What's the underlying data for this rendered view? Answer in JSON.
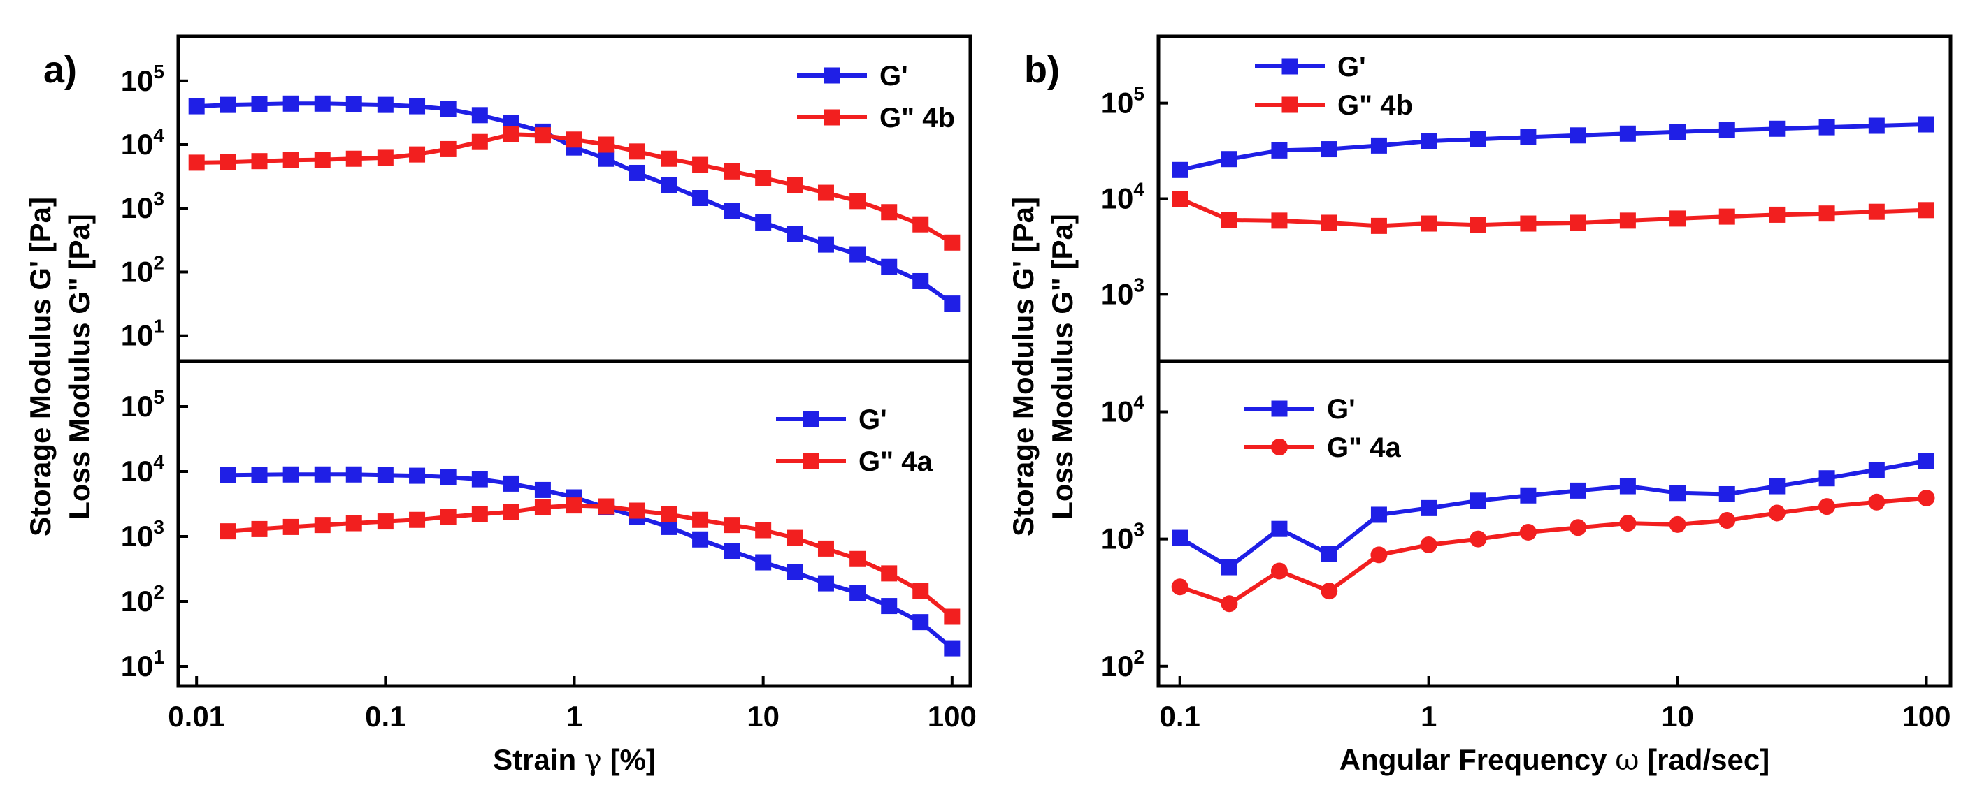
{
  "chart_data": [
    {
      "id": "a_top",
      "type": "line",
      "panel": "a)",
      "xscale": "log",
      "yscale": "log",
      "xlim": [
        0.008,
        125
      ],
      "ylim": [
        4,
        500000
      ],
      "yticks": [
        10,
        100,
        1000,
        10000,
        100000
      ],
      "ytick_exponents": [
        "1",
        "2",
        "3",
        "4",
        "5"
      ],
      "legend_location": "top-right",
      "legend_suffix": "4b",
      "series": [
        {
          "name": "G'",
          "color": "#1f1fe6",
          "marker": "square",
          "x": [
            0.01,
            0.0147,
            0.0215,
            0.0316,
            0.0464,
            0.0681,
            0.1,
            0.147,
            0.215,
            0.316,
            0.464,
            0.681,
            1,
            1.47,
            2.15,
            3.16,
            4.64,
            6.81,
            10,
            14.7,
            21.5,
            31.6,
            46.4,
            68.1,
            100
          ],
          "y": [
            40000,
            42000,
            43000,
            44000,
            44000,
            43000,
            42000,
            40000,
            36000,
            29000,
            22000,
            16000,
            9000,
            6000,
            3600,
            2300,
            1450,
            900,
            600,
            400,
            270,
            190,
            120,
            72,
            32
          ]
        },
        {
          "name": "G\"",
          "color": "#f21f1f",
          "marker": "square",
          "x": [
            0.01,
            0.0147,
            0.0215,
            0.0316,
            0.0464,
            0.0681,
            0.1,
            0.147,
            0.215,
            0.316,
            0.464,
            0.681,
            1,
            1.47,
            2.15,
            3.16,
            4.64,
            6.81,
            10,
            14.7,
            21.5,
            31.6,
            46.4,
            68.1,
            100
          ],
          "y": [
            5200,
            5300,
            5500,
            5700,
            5800,
            6000,
            6200,
            7000,
            8500,
            11000,
            14500,
            14000,
            12000,
            10000,
            7800,
            6000,
            4800,
            3800,
            3000,
            2300,
            1750,
            1300,
            870,
            560,
            290
          ]
        }
      ]
    },
    {
      "id": "a_bottom",
      "type": "line",
      "panel": "a)",
      "xscale": "log",
      "yscale": "log",
      "xlim": [
        0.008,
        125
      ],
      "ylim": [
        5,
        500000
      ],
      "yticks": [
        10,
        100,
        1000,
        10000,
        100000
      ],
      "ytick_exponents": [
        "1",
        "2",
        "3",
        "4",
        "5"
      ],
      "xticks": [
        "0.01",
        "0.1",
        "1",
        "10",
        "100"
      ],
      "xtick_values": [
        0.01,
        0.1,
        1,
        10,
        100
      ],
      "xlabel_prefix": "Strain",
      "xlabel_symbol": "γ",
      "xlabel_unit": "[%]",
      "legend_location": "top-right",
      "legend_suffix": "4a",
      "series": [
        {
          "name": "G'",
          "color": "#1f1fe6",
          "marker": "square",
          "x": [
            0.0147,
            0.0215,
            0.0316,
            0.0464,
            0.0681,
            0.1,
            0.147,
            0.215,
            0.316,
            0.464,
            0.681,
            1,
            1.47,
            2.15,
            3.16,
            4.64,
            6.81,
            10,
            14.7,
            21.5,
            31.6,
            46.4,
            68.1,
            100
          ],
          "y": [
            8800,
            8900,
            9000,
            9000,
            9000,
            8800,
            8600,
            8200,
            7600,
            6500,
            5200,
            4000,
            2800,
            2000,
            1400,
            900,
            600,
            400,
            280,
            190,
            135,
            85,
            48,
            19
          ]
        },
        {
          "name": "G\"",
          "color": "#f21f1f",
          "marker": "square",
          "x": [
            0.0147,
            0.0215,
            0.0316,
            0.0464,
            0.0681,
            0.1,
            0.147,
            0.215,
            0.316,
            0.464,
            0.681,
            1,
            1.47,
            2.15,
            3.16,
            4.64,
            6.81,
            10,
            14.7,
            21.5,
            31.6,
            46.4,
            68.1,
            100
          ],
          "y": [
            1200,
            1300,
            1400,
            1500,
            1600,
            1700,
            1800,
            2000,
            2200,
            2400,
            2800,
            3000,
            2900,
            2500,
            2200,
            1800,
            1500,
            1250,
            950,
            650,
            450,
            270,
            145,
            58
          ]
        }
      ]
    },
    {
      "id": "b_top",
      "type": "line",
      "panel": "b)",
      "xscale": "log",
      "yscale": "log",
      "xlim": [
        0.082,
        125
      ],
      "ylim": [
        200,
        500000
      ],
      "yticks": [
        1000,
        10000,
        100000
      ],
      "ytick_exponents": [
        "3",
        "4",
        "5"
      ],
      "legend_location": "top-left",
      "legend_suffix": "4b",
      "series": [
        {
          "name": "G'",
          "color": "#1f1fe6",
          "marker": "square",
          "x": [
            0.1,
            0.158,
            0.251,
            0.398,
            0.631,
            1,
            1.58,
            2.51,
            3.98,
            6.31,
            10,
            15.8,
            25.1,
            39.8,
            63.1,
            100
          ],
          "y": [
            20000,
            26000,
            32000,
            33000,
            36000,
            40000,
            42000,
            44000,
            46000,
            48000,
            50000,
            52000,
            54000,
            56000,
            58000,
            60000
          ]
        },
        {
          "name": "G\"",
          "color": "#f21f1f",
          "marker": "square",
          "x": [
            0.1,
            0.158,
            0.251,
            0.398,
            0.631,
            1,
            1.58,
            2.51,
            3.98,
            6.31,
            10,
            15.8,
            25.1,
            39.8,
            63.1,
            100
          ],
          "y": [
            10000,
            6000,
            5900,
            5600,
            5200,
            5500,
            5300,
            5500,
            5600,
            5900,
            6200,
            6500,
            6800,
            7000,
            7300,
            7600
          ]
        }
      ]
    },
    {
      "id": "b_bottom",
      "type": "line",
      "panel": "b)",
      "xscale": "log",
      "yscale": "log",
      "xlim": [
        0.082,
        125
      ],
      "ylim": [
        70,
        25000
      ],
      "yticks": [
        100,
        1000,
        10000
      ],
      "ytick_exponents": [
        "2",
        "3",
        "4"
      ],
      "xticks": [
        "0.1",
        "1",
        "10",
        "100"
      ],
      "xtick_values": [
        0.1,
        1,
        10,
        100
      ],
      "xlabel_prefix": "Angular Frequency",
      "xlabel_symbol": "ω",
      "xlabel_unit": "[rad/sec]",
      "legend_location": "top-left",
      "legend_suffix": "4a",
      "series": [
        {
          "name": "G'",
          "color": "#1f1fe6",
          "marker": "square",
          "x": [
            0.1,
            0.158,
            0.251,
            0.398,
            0.631,
            1,
            1.58,
            2.51,
            3.98,
            6.31,
            10,
            15.8,
            25.1,
            39.8,
            63.1,
            100
          ],
          "y": [
            1020,
            600,
            1200,
            760,
            1550,
            1750,
            2000,
            2200,
            2400,
            2600,
            2300,
            2250,
            2600,
            3000,
            3500,
            4100
          ]
        },
        {
          "name": "G\"",
          "color": "#f21f1f",
          "marker": "circle",
          "x": [
            0.1,
            0.158,
            0.251,
            0.398,
            0.631,
            1,
            1.58,
            2.51,
            3.98,
            6.31,
            10,
            15.8,
            25.1,
            39.8,
            63.1,
            100
          ],
          "y": [
            420,
            310,
            560,
            390,
            750,
            900,
            1000,
            1130,
            1230,
            1330,
            1300,
            1400,
            1600,
            1800,
            1950,
            2100
          ]
        }
      ]
    }
  ],
  "panels": {
    "a": {
      "tag": "a)",
      "ylabel_line1": "Storage Modulus G' [Pa]",
      "ylabel_line2": "Loss Modulus G\" [Pa]"
    },
    "b": {
      "tag": "b)",
      "ylabel_line1": "Storage Modulus G' [Pa]",
      "ylabel_line2": "Loss Modulus G\" [Pa]"
    }
  }
}
